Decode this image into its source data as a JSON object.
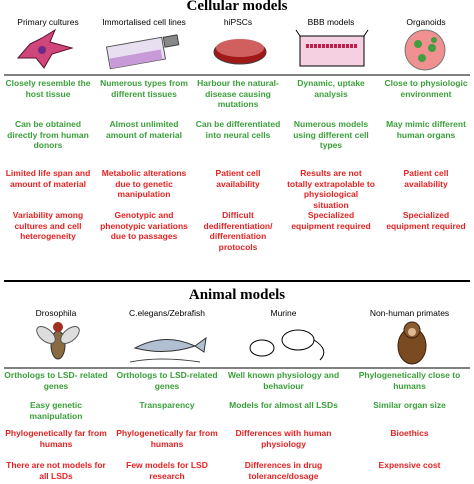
{
  "cellular": {
    "title": "Cellular  models",
    "columns": [
      "Primary cultures",
      "Immortalised cell lines",
      "hiPSCs",
      "BBB models",
      "Organoids"
    ],
    "rows": [
      [
        "Closely resemble the host tissue",
        "Numerous types from different tissues",
        "Harbour the natural-disease causing mutations",
        "Dynamic, uptake analysis",
        "Close to physiologic environment"
      ],
      [
        "Can be obtained directly from human donors",
        "Almost unlimited amount of material",
        "Can be differentiated into neural cells",
        "Numerous models using different cell types",
        "May mimic different human organs"
      ],
      [
        "Limited life span and amount of material",
        "Metabolic alterations due to genetic manipulation",
        "Patient cell availability",
        "Results are not totally extrapolable to physiological situation",
        "Patient cell availability"
      ],
      [
        "Variability among cultures and cell heterogeneity",
        "Genotypic and phenotypic variations due to passages",
        "Difficult dedifferentiation/ differentiation protocols",
        "Specialized equipment required",
        "Specialized equipment required"
      ]
    ]
  },
  "animal": {
    "title": "Animal models",
    "columns": [
      "Drosophila",
      "C.elegans/Zebrafish",
      "Murine",
      "Non-human primates"
    ],
    "rows": [
      [
        "Orthologs to LSD- related genes",
        "Orthologs to LSD-related genes",
        "Well known physiology and behaviour",
        "Phylogenetically close to humans"
      ],
      [
        "Easy genetic manipulation",
        "Transparency",
        "Models for almost all LSDs",
        "Similar organ size"
      ],
      [
        "Phylogenetically far from humans",
        "Phylogenetically far from humans",
        "Differences with human physiology",
        "Bioethics"
      ],
      [
        "There are not models for all LSDs",
        "Few models for LSD research",
        "Differences in drug tolerance/dosage",
        "Expensive cost"
      ]
    ]
  }
}
